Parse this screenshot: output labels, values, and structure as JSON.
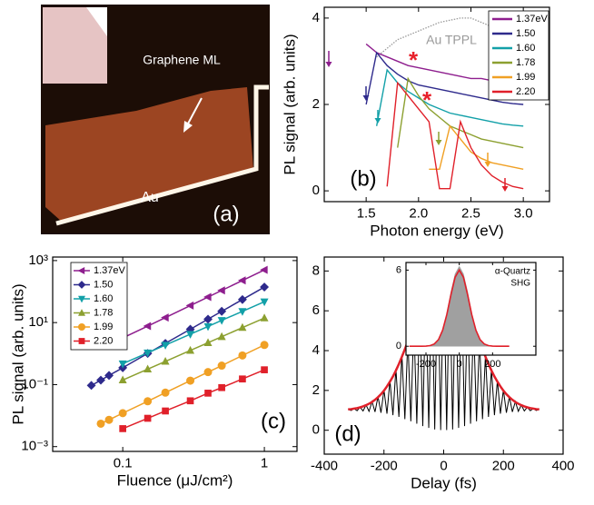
{
  "chart_data": [
    {
      "type": "image",
      "labels": [
        "Graphene ML",
        "Au"
      ],
      "panel_label": "(a)"
    },
    {
      "type": "line",
      "panel_label": "(b)",
      "xlabel": "Photon energy (eV)",
      "ylabel": "PL signal (arb. units)",
      "xlim": [
        1.1,
        3.25
      ],
      "ylim": [
        -0.25,
        4.25
      ],
      "xticks": [
        1.5,
        {
          "value": 2,
          "label": "2.0"
        },
        2.5,
        {
          "value": 3,
          "label": "3.0"
        }
      ],
      "yticks": [
        0,
        2,
        4
      ],
      "x": [
        1.4,
        1.5,
        1.6,
        1.7,
        1.8,
        1.9,
        2.0,
        2.1,
        2.2,
        2.3,
        2.4,
        2.5,
        2.6,
        2.7,
        2.8,
        2.9,
        3.0
      ],
      "series": [
        {
          "name": "1.37eV",
          "color": "#8e1e8e",
          "values": [
            null,
            3.4,
            3.2,
            3.1,
            3.0,
            2.9,
            2.85,
            2.8,
            2.75,
            2.7,
            2.65,
            2.6,
            2.6,
            2.55,
            2.55,
            2.5,
            2.5
          ]
        },
        {
          "name": "1.50",
          "color": "#2e2a8c",
          "values": [
            null,
            2.0,
            3.2,
            2.9,
            2.7,
            2.55,
            2.45,
            2.4,
            2.35,
            2.3,
            2.25,
            2.2,
            2.15,
            2.1,
            2.05,
            2.02,
            2.0
          ]
        },
        {
          "name": "1.60",
          "color": "#12a0a8",
          "values": [
            null,
            null,
            1.5,
            2.8,
            2.5,
            2.3,
            2.15,
            2.0,
            1.9,
            1.8,
            1.75,
            1.7,
            1.65,
            1.6,
            1.55,
            1.52,
            1.5
          ]
        },
        {
          "name": "1.78",
          "color": "#8ca030",
          "values": [
            null,
            null,
            null,
            null,
            1.0,
            2.6,
            2.2,
            1.9,
            1.7,
            1.5,
            1.4,
            1.3,
            1.2,
            1.15,
            1.1,
            1.05,
            1.0
          ]
        },
        {
          "name": "1.99",
          "color": "#f0a024",
          "values": [
            null,
            null,
            null,
            null,
            null,
            null,
            null,
            0.5,
            0.5,
            1.5,
            1.2,
            0.9,
            0.75,
            0.65,
            0.6,
            0.55,
            0.5
          ]
        },
        {
          "name": "2.20",
          "color": "#e0202a",
          "values": [
            null,
            null,
            null,
            0.1,
            2.5,
            2.2,
            1.9,
            1.6,
            0.05,
            0.05,
            1.6,
            1.0,
            0.6,
            0.35,
            0.2,
            0.1,
            0.05
          ]
        }
      ],
      "reference": {
        "name": "Au TPPL",
        "color": "#9a9a9a",
        "values": [
          null,
          null,
          3.1,
          3.3,
          3.5,
          3.6,
          3.7,
          3.8,
          3.9,
          3.95,
          4.0,
          4.0,
          3.9,
          3.8,
          3.6,
          3.45,
          3.3
        ]
      },
      "annotations": [
        "*",
        "*"
      ],
      "annotation_color": "#e8202a",
      "legend": "upper right"
    },
    {
      "type": "scatter",
      "panel_label": "(c)",
      "xlabel": "Fluence (μJ/cm²)",
      "ylabel": "PL signal (arb. units)",
      "xscale": "log",
      "yscale": "log",
      "xlim": [
        0.032,
        1.7
      ],
      "ylim": [
        0.0007,
        1300
      ],
      "xticks": [
        0.1,
        1
      ],
      "yticks": [
        {
          "value": 0.001,
          "label": "10⁻³"
        },
        {
          "value": 0.1,
          "label": "10⁻¹"
        },
        {
          "value": 10,
          "label": "10¹"
        },
        {
          "value": 1000,
          "label": "10³"
        }
      ],
      "x": [
        0.06,
        0.07,
        0.08,
        0.1,
        0.15,
        0.2,
        0.3,
        0.4,
        0.5,
        0.7,
        1.0
      ],
      "series": [
        {
          "name": "1.37eV",
          "color": "#8e1e8e",
          "marker": "triangle-left",
          "values": [
            null,
            null,
            null,
            3.2,
            7.7,
            14.5,
            35.4,
            66.6,
            109,
            228,
            500
          ]
        },
        {
          "name": "1.50",
          "color": "#2e2a8c",
          "marker": "diamond",
          "values": [
            0.094,
            0.139,
            0.197,
            0.35,
            1.01,
            2.14,
            6.1,
            12.9,
            23.1,
            55.3,
            140
          ]
        },
        {
          "name": "1.60",
          "color": "#12a0a8",
          "marker": "triangle-down",
          "values": [
            null,
            null,
            null,
            0.47,
            1.06,
            1.88,
            4.23,
            7.5,
            11.8,
            23,
            47
          ]
        },
        {
          "name": "1.78",
          "color": "#8ca030",
          "marker": "triangle-up",
          "values": [
            null,
            null,
            null,
            0.14,
            0.315,
            0.56,
            1.26,
            2.24,
            3.5,
            6.9,
            14
          ]
        },
        {
          "name": "1.99",
          "color": "#f0a024",
          "marker": "circle",
          "values": [
            null,
            0.0055,
            0.0073,
            0.012,
            0.029,
            0.055,
            0.134,
            0.253,
            0.41,
            0.87,
            1.9
          ]
        },
        {
          "name": "2.20",
          "color": "#e0202a",
          "marker": "square",
          "values": [
            null,
            null,
            null,
            0.0038,
            0.0082,
            0.0141,
            0.03,
            0.053,
            0.08,
            0.152,
            0.3
          ]
        }
      ],
      "legend": "upper left"
    },
    {
      "type": "line",
      "panel_label": "(d)",
      "xlabel": "Delay (fs)",
      "xlim": [
        -400,
        400
      ],
      "ylim": [
        -1.2,
        8.7
      ],
      "xticks": [
        -400,
        -200,
        0,
        200,
        400
      ],
      "yticks": [
        0,
        2,
        4,
        6,
        8
      ],
      "x": [
        -320,
        -310,
        -300,
        -290,
        -280,
        -270,
        -260,
        -250,
        -240,
        -230,
        -220,
        -210,
        -200,
        -190,
        -180,
        -170,
        -160,
        -150,
        -140,
        -130,
        -120,
        -110,
        -100,
        -90,
        -80,
        -70,
        -60,
        -50,
        -40,
        -30,
        -20,
        -10,
        0,
        10,
        20,
        30,
        40,
        50,
        60,
        70,
        80,
        90,
        100,
        110,
        120,
        130,
        140,
        150,
        160,
        170,
        180,
        190,
        200,
        210,
        220,
        230,
        240,
        250,
        260,
        270,
        280,
        290,
        300,
        310,
        320
      ],
      "series": [
        {
          "color": "#000000",
          "values": [
            1.05,
            0.99,
            1.09,
            0.98,
            1.16,
            0.97,
            1.27,
            0.95,
            1.44,
            0.92,
            1.69,
            0.88,
            2.03,
            0.83,
            2.5,
            0.76,
            3.09,
            0.67,
            3.8,
            0.56,
            4.61,
            0.45,
            5.47,
            0.33,
            6.34,
            0.21,
            7.12,
            0.12,
            7.75,
            0.04,
            8.16,
            0.01,
            8.3,
            0.01,
            8.16,
            0.04,
            7.75,
            0.12,
            7.12,
            0.21,
            6.34,
            0.33,
            5.47,
            0.45,
            4.61,
            0.56,
            3.8,
            0.67,
            3.09,
            0.76,
            2.5,
            0.83,
            2.03,
            0.88,
            1.69,
            0.92,
            1.44,
            0.95,
            1.27,
            0.97,
            1.16,
            0.98,
            1.09,
            0.99,
            1.05
          ]
        },
        {
          "color": "#e0202a",
          "values": [
            1.05,
            1.06,
            1.09,
            1.11,
            1.15,
            1.2,
            1.26,
            1.33,
            1.42,
            1.53,
            1.66,
            1.81,
            1.99,
            2.2,
            2.44,
            2.7,
            3.0,
            3.33,
            3.69,
            4.07,
            4.47,
            4.87,
            5.29,
            5.71,
            6.12,
            6.51,
            6.87,
            7.2,
            7.48,
            7.7,
            7.87,
            7.97,
            8,
            7.97,
            7.87,
            7.7,
            7.48,
            7.2,
            6.87,
            6.51,
            6.12,
            5.71,
            5.29,
            4.87,
            4.47,
            4.07,
            3.69,
            3.33,
            3.0,
            2.7,
            2.44,
            2.2,
            1.99,
            1.81,
            1.66,
            1.53,
            1.42,
            1.33,
            1.26,
            1.2,
            1.15,
            1.11,
            1.09,
            1.06,
            1.05
          ]
        }
      ],
      "inset": {
        "type": "area",
        "labels": [
          "α-Quartz",
          "SHG"
        ],
        "xlim": [
          -320,
          460
        ],
        "ylim": [
          -0.7,
          6.6
        ],
        "xticks": [
          -200,
          0,
          200
        ],
        "yticks": [
          0,
          6
        ],
        "x": [
          -300,
          -275,
          -250,
          -225,
          -200,
          -175,
          -150,
          -125,
          -100,
          -75,
          -50,
          -25,
          0,
          25,
          50,
          75,
          100,
          125,
          150,
          175,
          200,
          225,
          250,
          275,
          300
        ],
        "series": [
          {
            "color": "#a0a0a0",
            "fill": true,
            "values": [
              0,
              0,
              0,
              0,
              0.01,
              0.05,
              0.19,
              0.55,
              1.3,
              2.6,
              4.3,
              5.7,
              6.3,
              5.7,
              4.3,
              2.6,
              1.3,
              0.55,
              0.19,
              0.05,
              0.01,
              0,
              0,
              0,
              0
            ]
          },
          {
            "color": "#e0202a",
            "values": [
              0,
              0,
              0,
              0,
              0.01,
              0.05,
              0.18,
              0.52,
              1.26,
              2.49,
              4.06,
              5.44,
              6,
              5.44,
              4.06,
              2.49,
              1.26,
              0.52,
              0.18,
              0.05,
              0.01,
              0,
              0,
              0,
              0
            ]
          }
        ]
      }
    }
  ]
}
